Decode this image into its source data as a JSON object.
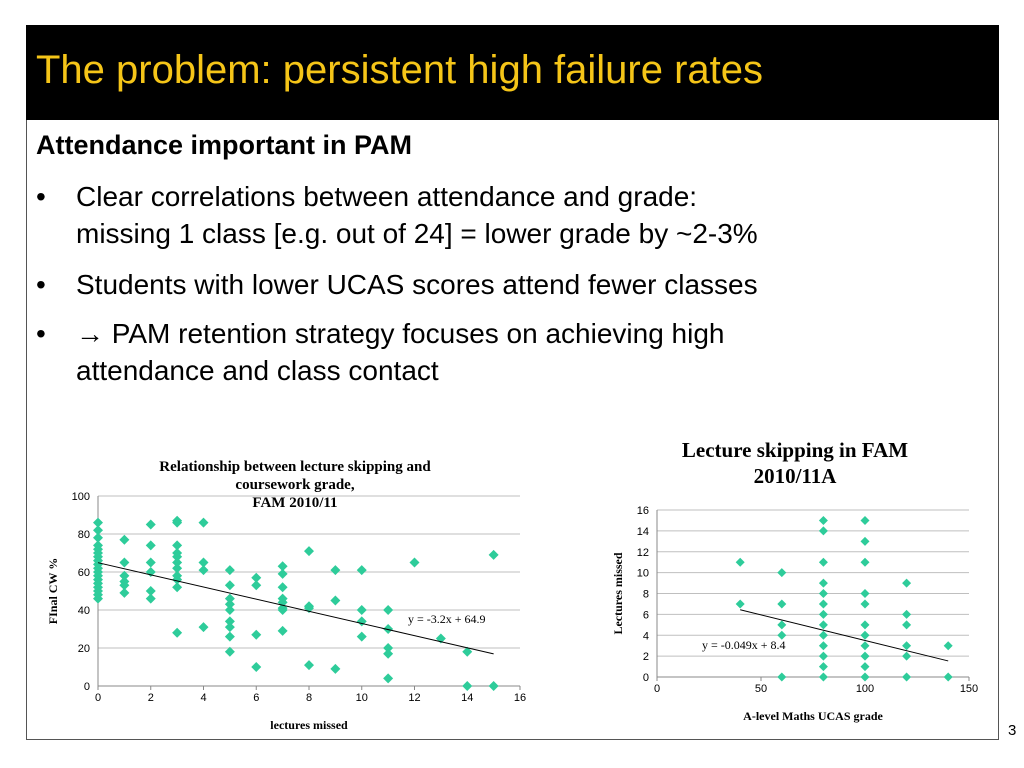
{
  "slide": {
    "title": "The problem: persistent high failure rates",
    "heading": "Attendance important in PAM",
    "bullets": [
      {
        "line1": "Clear correlations between attendance and grade:",
        "line2": "missing 1 class [e.g. out of 24] = lower grade by ~2-3%"
      },
      {
        "line1": "Students with lower UCAS scores attend fewer classes",
        "line2": ""
      },
      {
        "line1": "→ PAM retention strategy focuses on achieving high",
        "line2": "attendance and class contact"
      }
    ],
    "bullet_symbol": "•",
    "page_number": "3",
    "colors": {
      "title_bg": "#000000",
      "title_text": "#f5c518",
      "marker": "#2ecc9a"
    }
  },
  "chart_data": [
    {
      "type": "scatter",
      "title_lines": [
        "Relationship between lecture skipping and",
        "coursework grade,",
        "FAM 2010/11"
      ],
      "xlabel": "lectures missed",
      "ylabel": "FInal CW %",
      "xlim": [
        0,
        16
      ],
      "ylim": [
        0,
        100
      ],
      "xticks": [
        "0",
        "2",
        "4",
        "6",
        "8",
        "10",
        "12",
        "14",
        "16"
      ],
      "yticks": [
        "0",
        "20",
        "40",
        "60",
        "80",
        "100"
      ],
      "grid": true,
      "trendline": {
        "label": "y = -3.2x + 64.9",
        "slope": -3.2,
        "intercept": 64.9,
        "x_start": 0,
        "x_end": 15
      },
      "points": [
        [
          0,
          86
        ],
        [
          0,
          82
        ],
        [
          0,
          78
        ],
        [
          0,
          74
        ],
        [
          0,
          72
        ],
        [
          0,
          70
        ],
        [
          0,
          68
        ],
        [
          0,
          66
        ],
        [
          0,
          64
        ],
        [
          0,
          62
        ],
        [
          0,
          60
        ],
        [
          0,
          58
        ],
        [
          0,
          56
        ],
        [
          0,
          54
        ],
        [
          0,
          52
        ],
        [
          0,
          50
        ],
        [
          0,
          48
        ],
        [
          0,
          46
        ],
        [
          1,
          77
        ],
        [
          1,
          65
        ],
        [
          1,
          58
        ],
        [
          1,
          55
        ],
        [
          1,
          53
        ],
        [
          1,
          49
        ],
        [
          2,
          85
        ],
        [
          2,
          74
        ],
        [
          2,
          65
        ],
        [
          2,
          60
        ],
        [
          2,
          50
        ],
        [
          2,
          46
        ],
        [
          3,
          87
        ],
        [
          3,
          86
        ],
        [
          3,
          74
        ],
        [
          3,
          70
        ],
        [
          3,
          68
        ],
        [
          3,
          65
        ],
        [
          3,
          62
        ],
        [
          3,
          58
        ],
        [
          3,
          56
        ],
        [
          3,
          52
        ],
        [
          3,
          28
        ],
        [
          4,
          86
        ],
        [
          4,
          65
        ],
        [
          4,
          61
        ],
        [
          4,
          31
        ],
        [
          5,
          61
        ],
        [
          5,
          53
        ],
        [
          5,
          46
        ],
        [
          5,
          43
        ],
        [
          5,
          40
        ],
        [
          5,
          34
        ],
        [
          5,
          31
        ],
        [
          5,
          26
        ],
        [
          5,
          18
        ],
        [
          6,
          57
        ],
        [
          6,
          53
        ],
        [
          6,
          27
        ],
        [
          6,
          10
        ],
        [
          7,
          63
        ],
        [
          7,
          59
        ],
        [
          7,
          52
        ],
        [
          7,
          46
        ],
        [
          7,
          44
        ],
        [
          7,
          41
        ],
        [
          7,
          40
        ],
        [
          7,
          29
        ],
        [
          8,
          71
        ],
        [
          8,
          42
        ],
        [
          8,
          41
        ],
        [
          8,
          11
        ],
        [
          9,
          61
        ],
        [
          9,
          45
        ],
        [
          9,
          9
        ],
        [
          10,
          61
        ],
        [
          10,
          40
        ],
        [
          10,
          34
        ],
        [
          10,
          26
        ],
        [
          11,
          40
        ],
        [
          11,
          30
        ],
        [
          11,
          20
        ],
        [
          11,
          17
        ],
        [
          11,
          4
        ],
        [
          12,
          65
        ],
        [
          13,
          25
        ],
        [
          14,
          18
        ],
        [
          14,
          0
        ],
        [
          15,
          69
        ],
        [
          15,
          0
        ]
      ]
    },
    {
      "type": "scatter",
      "title_lines": [
        "Lecture skipping in FAM",
        "2010/11A"
      ],
      "xlabel": "A-level Maths UCAS grade",
      "ylabel": "Lectures missed",
      "xlim": [
        0,
        150
      ],
      "ylim": [
        0,
        16
      ],
      "xticks": [
        "0",
        "50",
        "100",
        "150"
      ],
      "yticks": [
        "0",
        "2",
        "4",
        "6",
        "8",
        "10",
        "12",
        "14",
        "16"
      ],
      "grid": true,
      "trendline": {
        "label": "y = -0.049x + 8.4",
        "slope": -0.049,
        "intercept": 8.4,
        "x_start": 40,
        "x_end": 140
      },
      "points": [
        [
          40,
          11
        ],
        [
          40,
          7
        ],
        [
          60,
          10
        ],
        [
          60,
          7
        ],
        [
          60,
          5
        ],
        [
          60,
          4
        ],
        [
          60,
          0
        ],
        [
          80,
          15
        ],
        [
          80,
          14
        ],
        [
          80,
          11
        ],
        [
          80,
          9
        ],
        [
          80,
          8
        ],
        [
          80,
          7
        ],
        [
          80,
          6
        ],
        [
          80,
          5
        ],
        [
          80,
          4
        ],
        [
          80,
          3
        ],
        [
          80,
          2
        ],
        [
          80,
          1
        ],
        [
          80,
          0
        ],
        [
          100,
          15
        ],
        [
          100,
          13
        ],
        [
          100,
          11
        ],
        [
          100,
          8
        ],
        [
          100,
          7
        ],
        [
          100,
          5
        ],
        [
          100,
          4
        ],
        [
          100,
          3
        ],
        [
          100,
          2
        ],
        [
          100,
          1
        ],
        [
          100,
          0
        ],
        [
          120,
          9
        ],
        [
          120,
          6
        ],
        [
          120,
          5
        ],
        [
          120,
          3
        ],
        [
          120,
          2
        ],
        [
          120,
          0
        ],
        [
          140,
          3
        ],
        [
          140,
          0
        ]
      ]
    }
  ]
}
